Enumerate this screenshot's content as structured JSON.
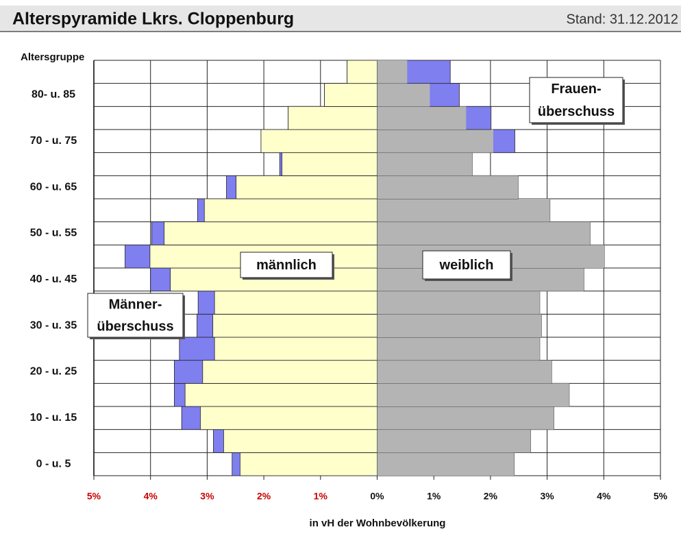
{
  "header": {
    "title": "Alterspyramide Lkrs. Cloppenburg",
    "date": "Stand: 31.12.2012"
  },
  "chart_data": {
    "type": "pyramid",
    "y_label": "Altersgruppe",
    "x_label": "in vH der Wohnbevölkerung",
    "categories": [
      "0 - u. 5",
      null,
      "10 - u. 15",
      null,
      "20 - u. 25",
      null,
      "30 - u. 35",
      null,
      "40 - u. 45",
      null,
      "50 - u. 55",
      null,
      "60 - u. 65",
      null,
      "70 - u. 75",
      null,
      "80- u. 85",
      null
    ],
    "series": [
      {
        "name": "männlich",
        "color": "#ffffcc",
        "values": [
          2.56,
          2.89,
          3.45,
          3.58,
          3.58,
          3.49,
          3.18,
          3.16,
          4.0,
          4.45,
          3.98,
          3.17,
          2.66,
          1.72,
          2.05,
          1.57,
          0.93,
          0.53
        ]
      },
      {
        "name": "weiblich",
        "color": "#b4b4b4",
        "values": [
          2.42,
          2.71,
          3.12,
          3.39,
          3.08,
          2.87,
          2.9,
          2.87,
          3.65,
          4.01,
          3.76,
          3.05,
          2.49,
          1.68,
          2.43,
          2.01,
          1.45,
          1.29
        ]
      }
    ],
    "surplus_color": "#7f7ff0",
    "annotations": [
      {
        "lines": [
          "Frauen-",
          "überschuss"
        ]
      },
      {
        "lines": [
          "Männer-",
          "überschuss"
        ]
      }
    ],
    "xlim": [
      -5,
      5
    ],
    "xticks": [
      {
        "value": -5,
        "label": "5%"
      },
      {
        "value": -4,
        "label": "4%"
      },
      {
        "value": -3,
        "label": "3%"
      },
      {
        "value": -2,
        "label": "2%"
      },
      {
        "value": -1,
        "label": "1%"
      },
      {
        "value": 0,
        "label": "0%"
      },
      {
        "value": 1,
        "label": "1%"
      },
      {
        "value": 2,
        "label": "2%"
      },
      {
        "value": 3,
        "label": "3%"
      },
      {
        "value": 4,
        "label": "4%"
      },
      {
        "value": 5,
        "label": "5%"
      }
    ],
    "grid": true
  }
}
